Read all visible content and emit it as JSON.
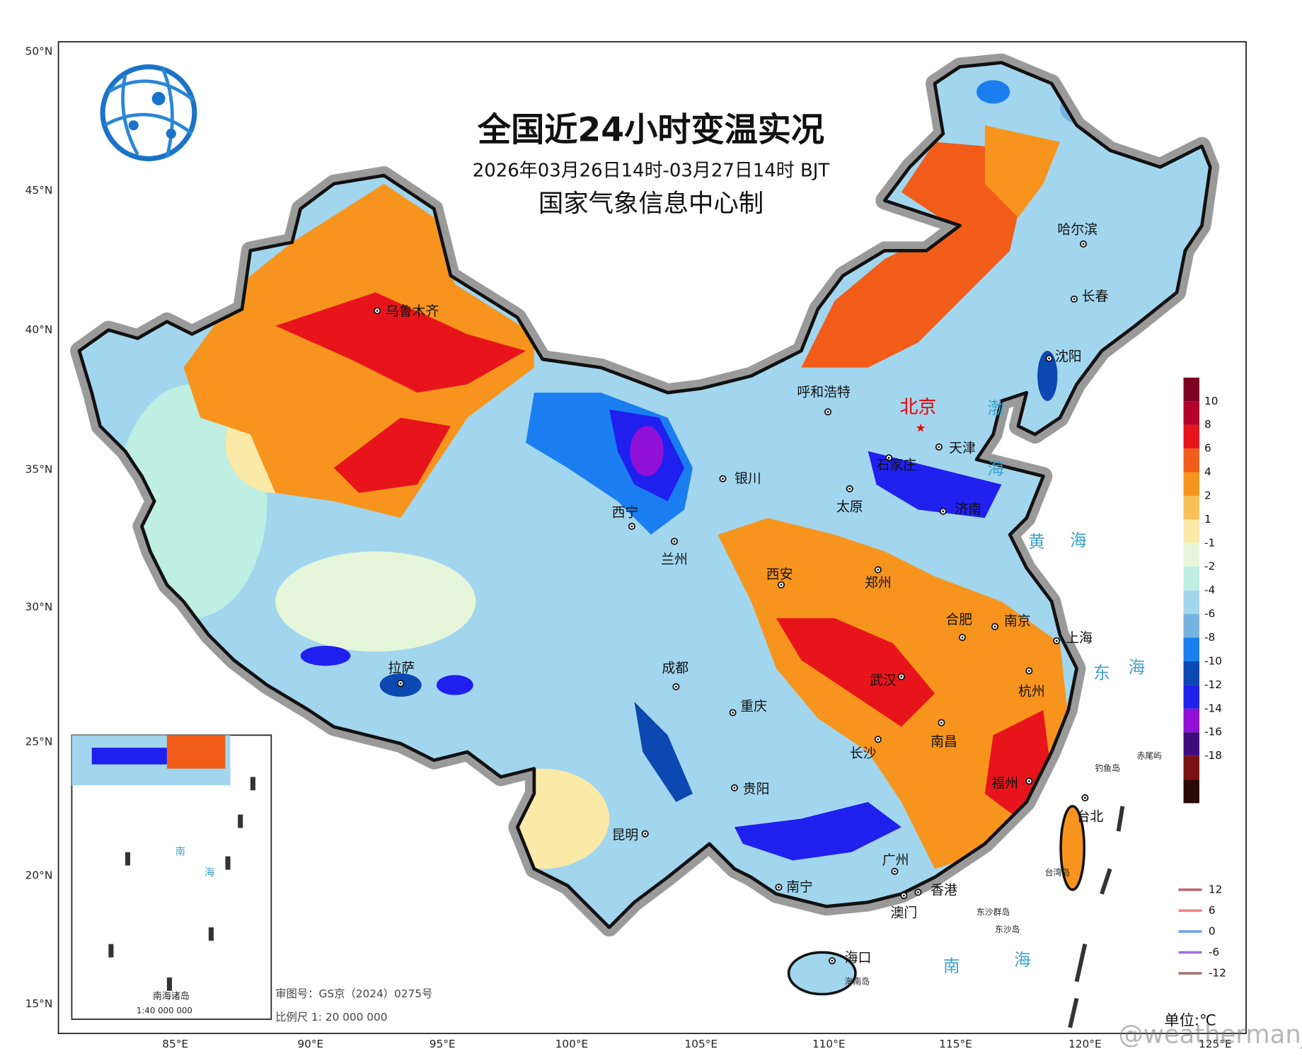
{
  "title": "全国近24小时变温实况",
  "subtitle": "2026年03月26日14时-03月27日14时 BJT",
  "producer": "国家气象信息中心制",
  "lat_labels": [
    "50°N",
    "45°N",
    "40°N",
    "35°N",
    "30°N",
    "25°N",
    "20°N",
    "15°N"
  ],
  "lon_labels": [
    "85°E",
    "90°E",
    "95°E",
    "100°E",
    "105°E",
    "110°E",
    "115°E",
    "120°E",
    "125°E"
  ],
  "cities": [
    {
      "name": "乌鲁木齐"
    },
    {
      "name": "哈尔滨"
    },
    {
      "name": "长春"
    },
    {
      "name": "沈阳"
    },
    {
      "name": "呼和浩特"
    },
    {
      "name": "北京"
    },
    {
      "name": "天津"
    },
    {
      "name": "石家庄"
    },
    {
      "name": "银川"
    },
    {
      "name": "太原"
    },
    {
      "name": "济南"
    },
    {
      "name": "西宁"
    },
    {
      "name": "兰州"
    },
    {
      "name": "西安"
    },
    {
      "name": "郑州"
    },
    {
      "name": "合肥"
    },
    {
      "name": "南京"
    },
    {
      "name": "上海"
    },
    {
      "name": "拉萨"
    },
    {
      "name": "成都"
    },
    {
      "name": "武汉"
    },
    {
      "name": "杭州"
    },
    {
      "name": "重庆"
    },
    {
      "name": "长沙"
    },
    {
      "name": "南昌"
    },
    {
      "name": "福州"
    },
    {
      "name": "贵阳"
    },
    {
      "name": "昆明"
    },
    {
      "name": "台北"
    },
    {
      "name": "广州"
    },
    {
      "name": "南宁"
    },
    {
      "name": "香港"
    },
    {
      "name": "澳门"
    },
    {
      "name": "海口"
    }
  ],
  "islands": [
    "钓鱼岛",
    "赤尾屿",
    "台湾岛",
    "东沙群岛",
    "东沙岛",
    "海南岛"
  ],
  "seas": [
    "渤",
    "海",
    "黄",
    "海",
    "东",
    "海",
    "南",
    "海"
  ],
  "legend": {
    "colors": [
      "#7d0022",
      "#b3002d",
      "#e8141c",
      "#f25c19",
      "#f7941d",
      "#f9c05a",
      "#fbe9a8",
      "#e6f6da",
      "#bfeee2",
      "#a2d6ee",
      "#74b3dd",
      "#1a7ef0",
      "#0c48b2",
      "#2020ee",
      "#9010d8",
      "#3f0c80",
      "#7a1212",
      "#2a0a06"
    ],
    "labels": [
      "10",
      "8",
      "6",
      "4",
      "2",
      "1",
      "-1",
      "-2",
      "-4",
      "-6",
      "-8",
      "-10",
      "-12",
      "-14",
      "-16",
      "-18"
    ]
  },
  "contours": [
    {
      "label": "12",
      "color": "#c06070"
    },
    {
      "label": "6",
      "color": "#f08080"
    },
    {
      "label": "0",
      "color": "#70a0f0"
    },
    {
      "label": "-6",
      "color": "#a070e0"
    },
    {
      "label": "-12",
      "color": "#a07070"
    }
  ],
  "inset": {
    "title": "南海诸岛",
    "scale": "1:40 000 000",
    "seas": [
      "南",
      "海"
    ]
  },
  "review_number": "审图号：GS京（2024）0275号",
  "scale_text": "比例尺  1: 20 000 000",
  "unit": "单位:℃",
  "watermark": "@weatherman_信欣"
}
